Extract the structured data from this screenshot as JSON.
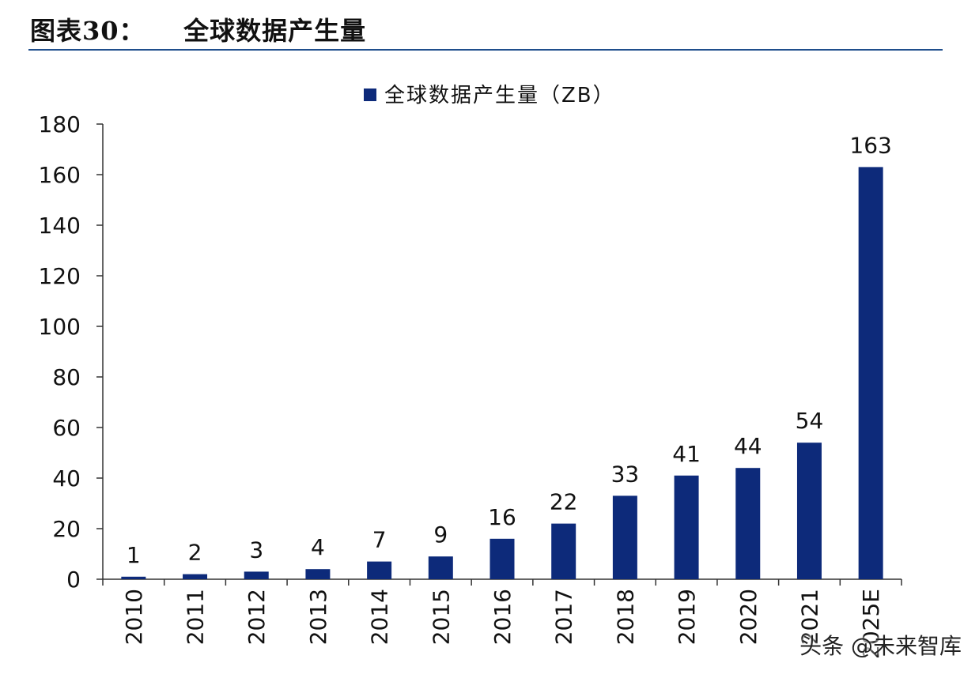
{
  "figure": {
    "title": "图表30：    全球数据产生量"
  },
  "watermark": "头条 @未来智库",
  "chart_data": {
    "type": "bar",
    "title": "",
    "xlabel": "",
    "ylabel": "",
    "categories": [
      "2010",
      "2011",
      "2012",
      "2013",
      "2014",
      "2015",
      "2016",
      "2017",
      "2018",
      "2019",
      "2020",
      "2021",
      "2025E"
    ],
    "series": [
      {
        "name": "全球数据产生量（ZB）",
        "values": [
          1,
          2,
          3,
          4,
          7,
          9,
          16,
          22,
          33,
          41,
          44,
          54,
          163
        ],
        "color": "#0d2a7a"
      }
    ],
    "data_labels": [
      "1",
      "2",
      "3",
      "4",
      "7",
      "9",
      "16",
      "22",
      "33",
      "41",
      "44",
      "54",
      "163"
    ],
    "ylim": [
      0,
      180
    ],
    "yticks": [
      0,
      20,
      40,
      60,
      80,
      100,
      120,
      140,
      160,
      180
    ],
    "grid": false,
    "legend": "top-center"
  }
}
